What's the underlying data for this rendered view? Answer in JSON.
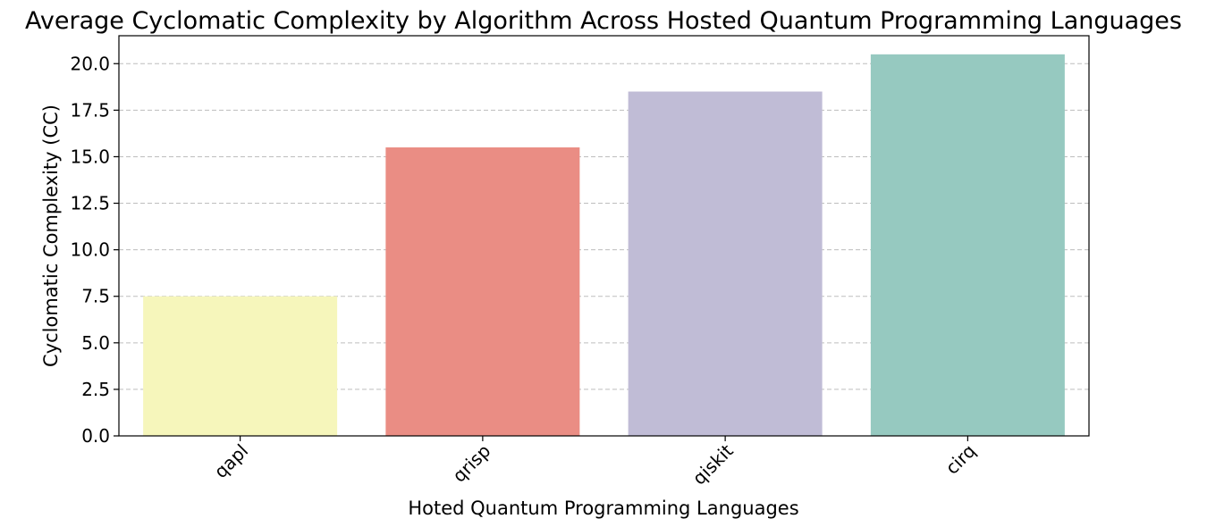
{
  "chart_data": {
    "type": "bar",
    "title": "Average Cyclomatic Complexity by Algorithm Across Hosted Quantum Programming Languages",
    "xlabel": "Hoted Quantum Programming Languages",
    "ylabel": "Cyclomatic Complexity (CC)",
    "categories": [
      "qapl",
      "qrisp",
      "qiskit",
      "cirq"
    ],
    "values": [
      7.5,
      15.5,
      18.5,
      20.5
    ],
    "colors": [
      "#f6f6bb",
      "#ea8d84",
      "#c0bcd6",
      "#96c9c0"
    ],
    "ylim": [
      0,
      21.5
    ],
    "yticks": [
      "0.0",
      "2.5",
      "5.0",
      "7.5",
      "10.0",
      "12.5",
      "15.0",
      "17.5",
      "20.0"
    ],
    "grid": "y-dashed",
    "legend": "none"
  }
}
